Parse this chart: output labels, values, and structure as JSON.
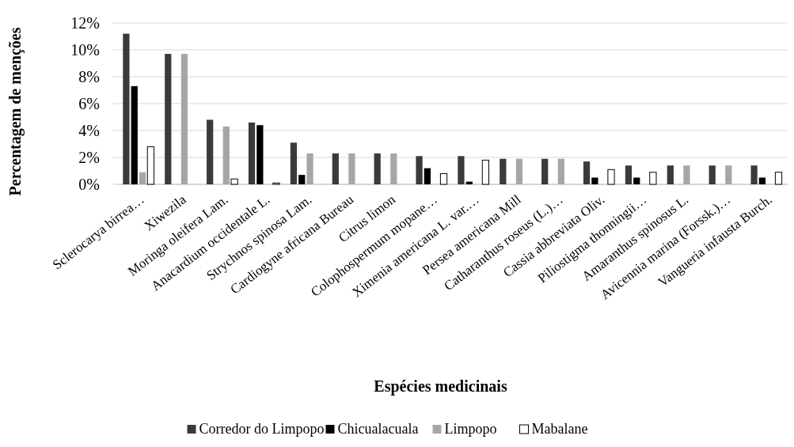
{
  "chart_data": {
    "type": "bar",
    "xlabel": "Espécies medicinais",
    "ylabel": "Percentagem de menções",
    "categories": [
      "Sclerocarya birrea…",
      "Xiwezila",
      "Moringa oleifera Lam.",
      "Anacardium occidentale L.",
      "Strychnos spinosa Lam.",
      "Cardiogyne africana Bureau",
      "Citrus limon",
      "Colophospermum mopane…",
      "Ximenia americana L. var.…",
      "Persea americana Mill",
      "Catharanthus roseus (L.)…",
      "Cassia  abbreviata Oliv.",
      "Piliostigma thonningii…",
      "Amaranthus spinosus L.",
      "Avicennia marina (Forssk.)…",
      "Vangueria infausta Burch."
    ],
    "series": [
      {
        "name": "Corredor do Limpopo",
        "color": "#3a3a3a",
        "values": [
          11.2,
          9.7,
          4.8,
          4.6,
          3.1,
          2.3,
          2.3,
          2.1,
          2.1,
          1.9,
          1.9,
          1.7,
          1.4,
          1.4,
          1.4,
          1.4
        ]
      },
      {
        "name": "Chicualacuala",
        "color": "#000000",
        "values": [
          7.3,
          0,
          0,
          4.4,
          0.7,
          0,
          0,
          1.2,
          0.2,
          0,
          0,
          0.5,
          0.5,
          0,
          0,
          0.5
        ]
      },
      {
        "name": "Limpopo",
        "color": "#a6a6a6",
        "values": [
          0.9,
          9.7,
          4.3,
          0,
          2.3,
          2.3,
          2.3,
          0,
          0,
          1.9,
          1.9,
          0,
          0,
          1.4,
          1.4,
          0
        ]
      },
      {
        "name": "Mabalane",
        "color": "#ffffff",
        "values": [
          2.8,
          0,
          0.4,
          0.1,
          0,
          0,
          0,
          0.8,
          1.8,
          0,
          0,
          1.1,
          0.9,
          0,
          0,
          0.9
        ]
      }
    ],
    "ylim": [
      0,
      12
    ],
    "yticks": [
      {
        "value": 0,
        "label": "0%"
      },
      {
        "value": 2,
        "label": "2%"
      },
      {
        "value": 4,
        "label": "4%"
      },
      {
        "value": 6,
        "label": "6%"
      },
      {
        "value": 8,
        "label": "8%"
      },
      {
        "value": 10,
        "label": "10%"
      },
      {
        "value": 12,
        "label": "12%"
      }
    ],
    "grid": "y",
    "legend": "bottom"
  }
}
